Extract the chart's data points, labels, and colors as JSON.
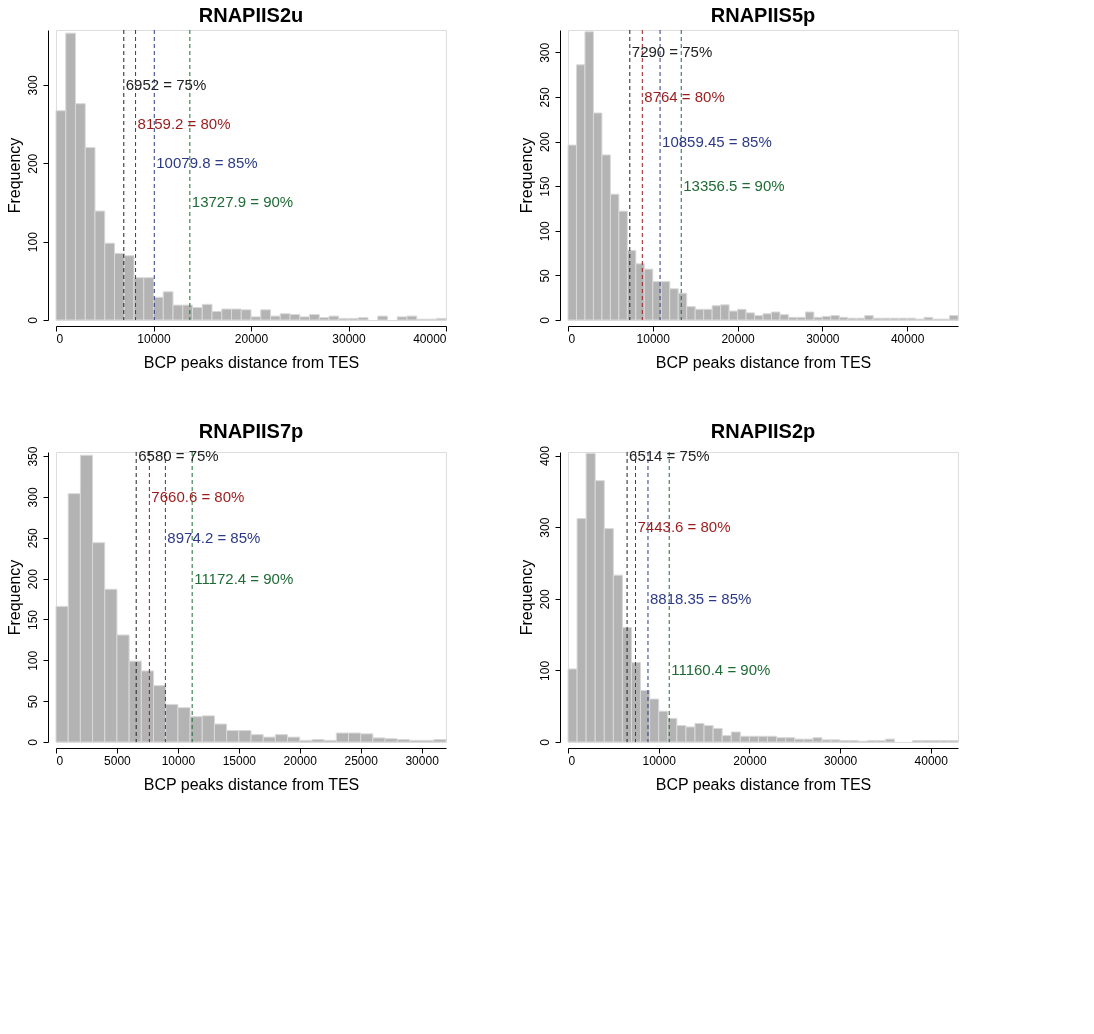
{
  "chart_data": [
    {
      "type": "histogram",
      "title": "RNAPIIS2u",
      "xlabel": "BCP peaks distance from TES",
      "ylabel": "Frequency",
      "color": "#b3b3b3",
      "grid": false,
      "bins": [
        0,
        1000,
        2000,
        3000,
        4000,
        5000,
        6000,
        7000,
        8000,
        9000,
        10000,
        11000,
        12000,
        13000,
        14000,
        15000,
        16000,
        17000,
        18000,
        19000,
        20000,
        21000,
        22000,
        23000,
        24000,
        25000,
        26000,
        27000,
        28000,
        29000,
        30000,
        31000,
        32000,
        33000,
        34000,
        35000,
        36000,
        37000,
        38000,
        39000,
        40000
      ],
      "values": [
        267,
        366,
        276,
        220,
        139,
        98,
        85,
        82,
        54,
        54,
        29,
        36,
        19,
        19,
        16,
        20,
        11,
        14,
        14,
        13,
        4,
        13,
        5,
        8,
        7,
        4,
        7,
        3,
        5,
        2,
        2,
        3,
        0,
        5,
        0,
        4,
        5,
        1,
        1,
        2
      ],
      "xlim": [
        0,
        40000
      ],
      "xticks": [
        0,
        10000,
        20000,
        30000,
        40000
      ],
      "ylim": [
        0,
        370
      ],
      "yticks": [
        0,
        100,
        200,
        300
      ],
      "ref_lines": [
        {
          "axis": "x",
          "value": 6952,
          "color": "#222222",
          "line_style": "dashed"
        },
        {
          "axis": "x",
          "value": 8159.2,
          "color": "#9b1b1b",
          "line_style": "dashed"
        },
        {
          "axis": "x",
          "value": 10079.8,
          "color": "#2c3a86",
          "line_style": "dashed"
        },
        {
          "axis": "x",
          "value": 13727.9,
          "color": "#1f6b36",
          "line_style": "dashed"
        }
      ],
      "annotations": [
        {
          "text": "6952 = 75%",
          "x": 6952,
          "y": 300
        },
        {
          "text": "8159.2 = 80%",
          "x": 8159.2,
          "y": 250
        },
        {
          "text": "10079.8 = 85%",
          "x": 10079.8,
          "y": 200
        },
        {
          "text": "13727.9 = 90%",
          "x": 13727.9,
          "y": 150
        }
      ]
    },
    {
      "type": "histogram",
      "title": "RNAPIIS5p",
      "xlabel": "BCP peaks distance from TES",
      "ylabel": "Frequency",
      "color": "#b3b3b3",
      "grid": false,
      "bins": [
        0,
        1000,
        2000,
        3000,
        4000,
        5000,
        6000,
        7000,
        8000,
        9000,
        10000,
        11000,
        12000,
        13000,
        14000,
        15000,
        16000,
        17000,
        18000,
        19000,
        20000,
        21000,
        22000,
        23000,
        24000,
        25000,
        26000,
        27000,
        28000,
        29000,
        30000,
        31000,
        32000,
        33000,
        34000,
        35000,
        36000,
        37000,
        38000,
        39000,
        40000,
        41000,
        42000,
        43000,
        44000,
        45000,
        46000
      ],
      "values": [
        196,
        286,
        323,
        232,
        185,
        141,
        122,
        78,
        63,
        57,
        43,
        43,
        35,
        30,
        15,
        12,
        12,
        16,
        17,
        10,
        12,
        8,
        5,
        7,
        9,
        6,
        3,
        3,
        9,
        3,
        4,
        5,
        3,
        2,
        2,
        5,
        2,
        2,
        2,
        2,
        2,
        1,
        3,
        1,
        1,
        5
      ],
      "xlim": [
        0,
        46000
      ],
      "xticks": [
        0,
        10000,
        20000,
        30000,
        40000
      ],
      "ylim": [
        0,
        325
      ],
      "yticks": [
        0,
        50,
        100,
        150,
        200,
        250,
        300
      ],
      "ref_lines": [
        {
          "axis": "x",
          "value": 7290,
          "color": "#222222",
          "line_style": "dashed"
        },
        {
          "axis": "x",
          "value": 8764,
          "color": "#9b1b1b",
          "line_style": "dashed"
        },
        {
          "axis": "x",
          "value": 10859.45,
          "color": "#2c3a86",
          "line_style": "dashed"
        },
        {
          "axis": "x",
          "value": 13356.5,
          "color": "#1f6b36",
          "line_style": "dashed"
        }
      ],
      "annotations": [
        {
          "text": "7290 = 75%",
          "x": 7290,
          "y": 300
        },
        {
          "text": "8764 = 80%",
          "x": 8764,
          "y": 250
        },
        {
          "text": "10859.45 = 85%",
          "x": 10859.45,
          "y": 200
        },
        {
          "text": "13356.5 = 90%",
          "x": 13356.5,
          "y": 150
        }
      ]
    },
    {
      "type": "histogram",
      "title": "RNAPIIS7p",
      "xlabel": "BCP peaks distance from TES",
      "ylabel": "Frequency",
      "color": "#b3b3b3",
      "grid": false,
      "bins": [
        0,
        1000,
        2000,
        3000,
        4000,
        5000,
        6000,
        7000,
        8000,
        9000,
        10000,
        11000,
        12000,
        13000,
        14000,
        15000,
        16000,
        17000,
        18000,
        19000,
        20000,
        21000,
        22000,
        23000,
        24000,
        25000,
        26000,
        27000,
        28000,
        29000,
        30000,
        31000,
        32000
      ],
      "values": [
        166,
        304,
        351,
        244,
        187,
        131,
        99,
        87,
        69,
        46,
        42,
        31,
        32,
        22,
        14,
        14,
        9,
        6,
        9,
        6,
        2,
        3,
        2,
        11,
        11,
        10,
        5,
        4,
        3,
        2,
        2,
        3
      ],
      "xlim": [
        0,
        32000
      ],
      "xticks": [
        0,
        5000,
        10000,
        15000,
        20000,
        25000,
        30000
      ],
      "ylim": [
        0,
        355
      ],
      "yticks": [
        0,
        50,
        100,
        150,
        200,
        250,
        300,
        350
      ],
      "ref_lines": [
        {
          "axis": "x",
          "value": 6580,
          "color": "#222222",
          "line_style": "dashed"
        },
        {
          "axis": "x",
          "value": 7660.6,
          "color": "#9b1b1b",
          "line_style": "dashed"
        },
        {
          "axis": "x",
          "value": 8974.2,
          "color": "#2c3a86",
          "line_style": "dashed"
        },
        {
          "axis": "x",
          "value": 11172.4,
          "color": "#1f6b36",
          "line_style": "dashed"
        }
      ],
      "annotations": [
        {
          "text": "6580 = 75%",
          "x": 6580,
          "y": 350
        },
        {
          "text": "7660.6 = 80%",
          "x": 7660.6,
          "y": 300
        },
        {
          "text": "8974.2 = 85%",
          "x": 8974.2,
          "y": 250
        },
        {
          "text": "11172.4 = 90%",
          "x": 11172.4,
          "y": 200
        }
      ]
    },
    {
      "type": "histogram",
      "title": "RNAPIIS2p",
      "xlabel": "BCP peaks distance from TES",
      "ylabel": "Frequency",
      "color": "#b3b3b3",
      "grid": false,
      "bins": [
        0,
        1000,
        2000,
        3000,
        4000,
        5000,
        6000,
        7000,
        8000,
        9000,
        10000,
        11000,
        12000,
        13000,
        14000,
        15000,
        16000,
        17000,
        18000,
        19000,
        20000,
        21000,
        22000,
        23000,
        24000,
        25000,
        26000,
        27000,
        28000,
        29000,
        30000,
        31000,
        32000,
        33000,
        34000,
        35000,
        36000,
        37000,
        38000,
        39000,
        40000,
        41000,
        42000,
        43000
      ],
      "values": [
        102,
        312,
        403,
        365,
        298,
        233,
        160,
        111,
        72,
        60,
        43,
        33,
        23,
        21,
        26,
        23,
        19,
        9,
        14,
        8,
        8,
        8,
        8,
        6,
        6,
        4,
        4,
        6,
        3,
        3,
        2,
        2,
        1,
        2,
        2,
        4,
        0,
        0,
        2,
        2,
        2,
        2,
        2
      ],
      "xlim": [
        0,
        43000
      ],
      "xticks": [
        0,
        10000,
        20000,
        30000,
        40000
      ],
      "ylim": [
        0,
        405
      ],
      "yticks": [
        0,
        100,
        200,
        300,
        400
      ],
      "ref_lines": [
        {
          "axis": "x",
          "value": 6514,
          "color": "#222222",
          "line_style": "dashed"
        },
        {
          "axis": "x",
          "value": 7443.6,
          "color": "#9b1b1b",
          "line_style": "dashed"
        },
        {
          "axis": "x",
          "value": 8818.35,
          "color": "#2c3a86",
          "line_style": "dashed"
        },
        {
          "axis": "x",
          "value": 11160.4,
          "color": "#1f6b36",
          "line_style": "dashed"
        }
      ],
      "annotations": [
        {
          "text": "6514 = 75%",
          "x": 6514,
          "y": 400
        },
        {
          "text": "7443.6 = 80%",
          "x": 7443.6,
          "y": 300
        },
        {
          "text": "8818.35 = 85%",
          "x": 8818.35,
          "y": 200
        },
        {
          "text": "11160.4 = 90%",
          "x": 11160.4,
          "y": 100
        }
      ]
    }
  ]
}
